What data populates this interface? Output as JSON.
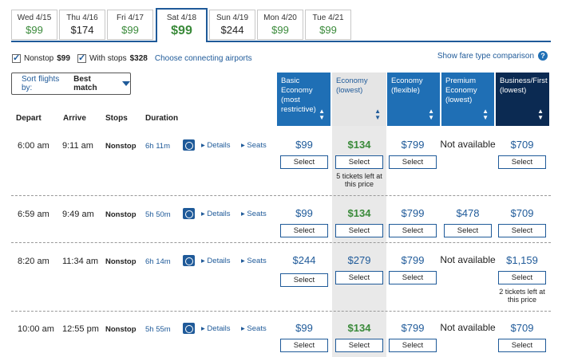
{
  "date_tabs": [
    {
      "day": "Wed 4/15",
      "price": "$99",
      "color": "green"
    },
    {
      "day": "Thu 4/16",
      "price": "$174",
      "color": "black"
    },
    {
      "day": "Fri 4/17",
      "price": "$99",
      "color": "green"
    },
    {
      "day": "Sat 4/18",
      "price": "$99",
      "color": "green",
      "active": true
    },
    {
      "day": "Sun 4/19",
      "price": "$244",
      "color": "black"
    },
    {
      "day": "Mon 4/20",
      "price": "$99",
      "color": "green"
    },
    {
      "day": "Tue 4/21",
      "price": "$99",
      "color": "green"
    }
  ],
  "filters": {
    "nonstop_label": "Nonstop",
    "nonstop_price": "$99",
    "with_stops_label": "With stops",
    "with_stops_price": "$328",
    "connecting_link": "Choose connecting airports",
    "fare_compare_link": "Show fare type comparison",
    "help_glyph": "?"
  },
  "sort": {
    "label": "Sort flights by:",
    "value": "Best match"
  },
  "columns": {
    "depart": "Depart",
    "arrive": "Arrive",
    "stops": "Stops",
    "duration": "Duration"
  },
  "fare_headers": [
    {
      "label": "Basic Economy (most restrictive)"
    },
    {
      "label": "Economy (lowest)"
    },
    {
      "label": "Economy (flexible)"
    },
    {
      "label": "Premium Economy (lowest)"
    },
    {
      "label": "Business/First (lowest)"
    }
  ],
  "link_labels": {
    "details": "Details",
    "seats": "Seats",
    "select": "Select"
  },
  "flights": [
    {
      "depart": "6:00 am",
      "arrive": "9:11 am",
      "stops": "Nonstop",
      "duration": "6h 11m",
      "fares": [
        "$99",
        "$134",
        "$799",
        "Not available",
        "$709"
      ],
      "economy_note": "5 tickets left at this price",
      "business_note": ""
    },
    {
      "depart": "6:59 am",
      "arrive": "9:49 am",
      "stops": "Nonstop",
      "duration": "5h 50m",
      "fares": [
        "$99",
        "$134",
        "$799",
        "$478",
        "$709"
      ],
      "economy_note": "",
      "business_note": ""
    },
    {
      "depart": "8:20 am",
      "arrive": "11:34 am",
      "stops": "Nonstop",
      "duration": "6h 14m",
      "fares": [
        "$244",
        "$279",
        "$799",
        "Not available",
        "$1,159"
      ],
      "economy_note": "",
      "business_note": "2 tickets left at this price"
    },
    {
      "depart": "10:00 am",
      "arrive": "12:55 pm",
      "stops": "Nonstop",
      "duration": "5h 55m",
      "fares": [
        "$99",
        "$134",
        "$799",
        "Not available",
        "$709"
      ],
      "economy_note": "",
      "business_note": ""
    }
  ],
  "colors": {
    "brand": "#1f5a99",
    "accent": "#1f6fb5",
    "green": "#3a8a3a",
    "business": "#0b2a52"
  }
}
